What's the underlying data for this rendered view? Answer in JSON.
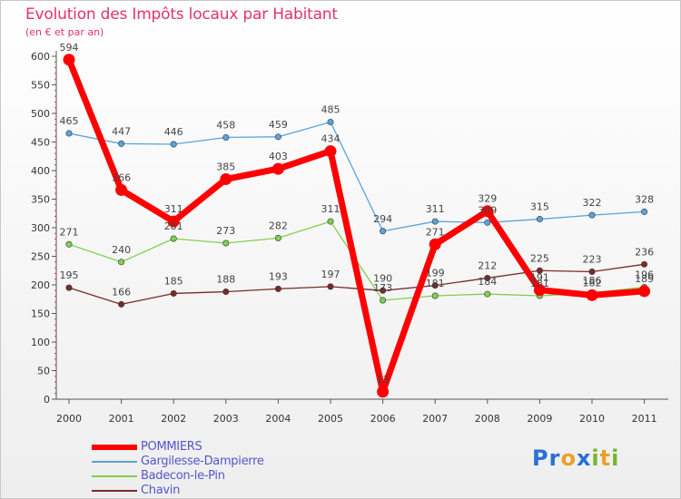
{
  "title": "Evolution des Impôts locaux par Habitant",
  "subtitle": "(en € et par an)",
  "chart_data": {
    "type": "line",
    "x": [
      "2000",
      "2001",
      "2002",
      "2003",
      "2004",
      "2005",
      "2006",
      "2007",
      "2008",
      "2009",
      "2010",
      "2011"
    ],
    "yticks": [
      "0",
      "50",
      "100",
      "150",
      "200",
      "250",
      "300",
      "350",
      "400",
      "450",
      "500",
      "550",
      "600"
    ],
    "ylim": [
      0,
      600
    ],
    "grid": false,
    "legend_position": "bottom-left",
    "series": [
      {
        "name": "POMMIERS",
        "color": "#ff0000",
        "values": [
          594,
          366,
          311,
          385,
          403,
          434,
          13,
          271,
          329,
          191,
          182,
          189
        ],
        "labels": [
          "594",
          "366",
          "311",
          "385",
          "403",
          "434",
          "13",
          "271",
          "329",
          "191",
          "182",
          "189"
        ]
      },
      {
        "name": "Gargilesse-Dampierre",
        "color": "#5ba3d9",
        "values": [
          465,
          447,
          446,
          458,
          459,
          485,
          294,
          311,
          309,
          315,
          322,
          328
        ],
        "labels": [
          "465",
          "447",
          "446",
          "458",
          "459",
          "485",
          "294",
          "311",
          "309",
          "315",
          "322",
          "328"
        ]
      },
      {
        "name": "Badecon-le-Pin",
        "color": "#80d050",
        "values": [
          271,
          240,
          281,
          273,
          282,
          311,
          173,
          181,
          184,
          181,
          186,
          196
        ],
        "labels": [
          "271",
          "240",
          "281",
          "273",
          "282",
          "311",
          "173",
          "181",
          "184",
          "181",
          "186",
          "196"
        ]
      },
      {
        "name": "Chavin",
        "color": "#7a2a2a",
        "values": [
          195,
          166,
          185,
          188,
          193,
          197,
          190,
          199,
          212,
          225,
          223,
          236
        ],
        "labels": [
          "195",
          "166",
          "185",
          "188",
          "193",
          "197",
          "190",
          "199",
          "212",
          "225",
          "223",
          "236"
        ]
      }
    ]
  },
  "logo": {
    "text": "Proxiti"
  }
}
